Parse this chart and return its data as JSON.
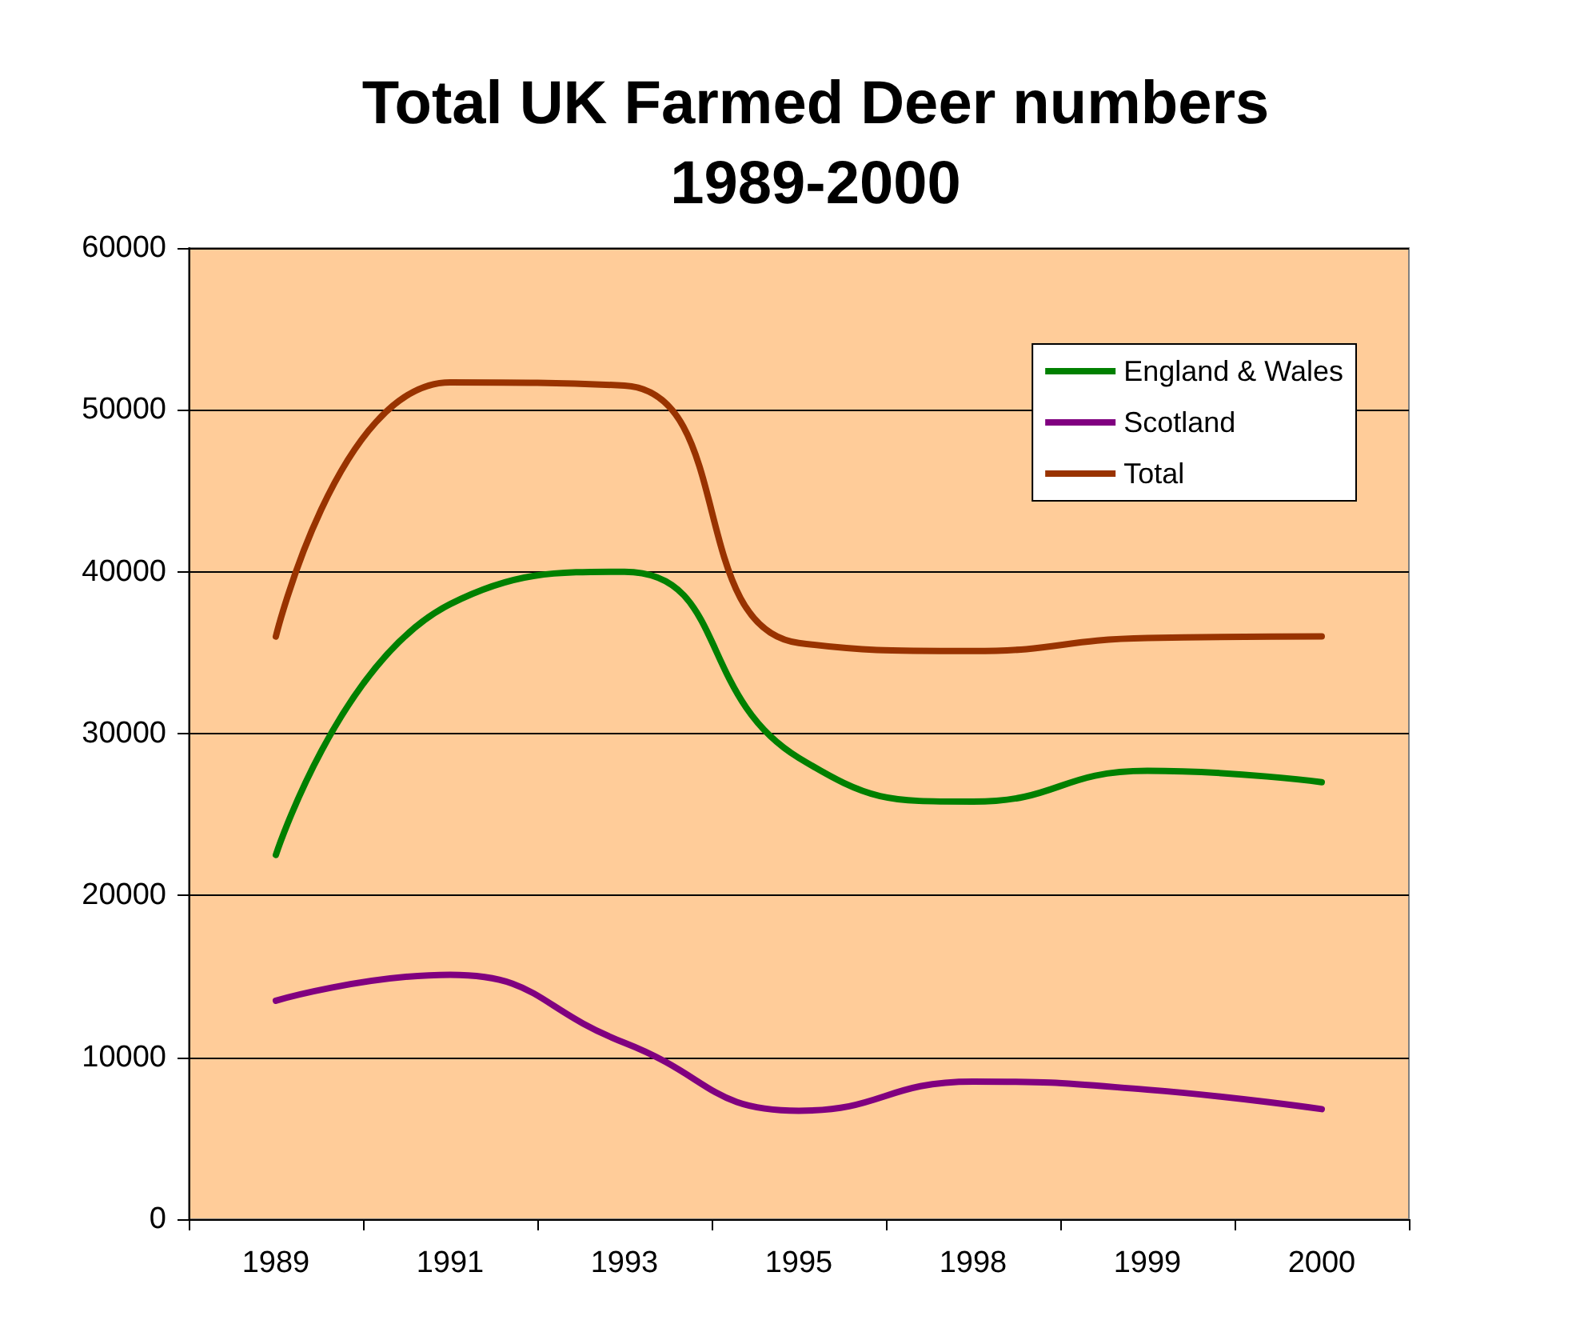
{
  "chart_data": {
    "type": "line",
    "title": "Total UK Farmed Deer numbers\n1989-2000",
    "categories": [
      "1989",
      "1991",
      "1993",
      "1995",
      "1998",
      "1999",
      "2000"
    ],
    "series": [
      {
        "name": "England & Wales",
        "color": "#008000",
        "values": [
          22500,
          38000,
          40000,
          28500,
          25800,
          27700,
          27000
        ]
      },
      {
        "name": "Scotland",
        "color": "#800080",
        "values": [
          13500,
          15100,
          10900,
          6700,
          8500,
          8000,
          6800
        ]
      },
      {
        "name": "Total",
        "color": "#993300",
        "values": [
          36000,
          51700,
          51500,
          35600,
          35100,
          35900,
          36000
        ]
      }
    ],
    "ylim": [
      0,
      60000
    ],
    "yticks": [
      0,
      10000,
      20000,
      30000,
      40000,
      50000,
      60000
    ],
    "grid": "y",
    "legend": "top right",
    "marker": "none",
    "line_style": "solid"
  }
}
